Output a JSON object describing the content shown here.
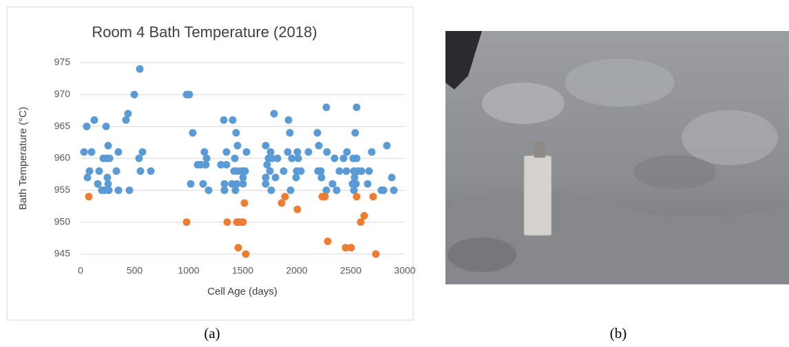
{
  "chart_data": {
    "type": "scatter",
    "title": "Room 4 Bath Temperature (2018)",
    "x_label": "Cell Age (days)",
    "y_label": "Bath Temperature (°C)",
    "xlim": [
      0,
      3000
    ],
    "xticks": [
      0,
      500,
      1000,
      1500,
      2000,
      2500,
      3000
    ],
    "ylim": [
      945,
      975
    ],
    "yticks": [
      945,
      950,
      955,
      960,
      965,
      970,
      975
    ],
    "grid": true,
    "series": [
      {
        "color": "#5b9bd5",
        "x": [
          32,
          57,
          64,
          83,
          102,
          127,
          159,
          172,
          197,
          210,
          223,
          242,
          236,
          248,
          255,
          255,
          261,
          268,
          331,
          350,
          350,
          420,
          439,
          452,
          497,
          548,
          541,
          554,
          573,
          650,
          981,
          1006,
          1019,
          1038,
          1083,
          1115,
          1134,
          1146,
          1159,
          1166,
          1185,
          1299,
          1325,
          1331,
          1331,
          1350,
          1350,
          1408,
          1401,
          1420,
          1427,
          1433,
          1439,
          1452,
          1446,
          1452,
          1490,
          1503,
          1503,
          1522,
          1535,
          1509,
          1713,
          1713,
          1713,
          1726,
          1739,
          1758,
          1752,
          1764,
          1771,
          1790,
          1803,
          1822,
          1879,
          1917,
          1924,
          1936,
          1943,
          1955,
          1994,
          2000,
          2006,
          2013,
          2038,
          2108,
          2191,
          2197,
          2204,
          2223,
          2229,
          2274,
          2274,
          2280,
          2331,
          2350,
          2369,
          2395,
          2433,
          2459,
          2465,
          2516,
          2522,
          2529,
          2535,
          2541,
          2529,
          2548,
          2554,
          2554,
          2567,
          2599,
          2656,
          2669,
          2694,
          2783,
          2803,
          2834,
          2879,
          2898
        ],
        "values": [
          961,
          965,
          957,
          958,
          961,
          966,
          956,
          958,
          955,
          960,
          955,
          960,
          965,
          957,
          962,
          956,
          955,
          960,
          958,
          961,
          955,
          966,
          967,
          955,
          970,
          974,
          960,
          958,
          961,
          958,
          970,
          970,
          956,
          964,
          959,
          959,
          956,
          961,
          959,
          960,
          955,
          959,
          966,
          956,
          955,
          961,
          959,
          966,
          956,
          958,
          960,
          955,
          964,
          962,
          956,
          958,
          958,
          957,
          956,
          958,
          961,
          958,
          962,
          957,
          956,
          959,
          960,
          961,
          958,
          955,
          960,
          967,
          957,
          960,
          958,
          961,
          966,
          964,
          955,
          960,
          957,
          958,
          961,
          960,
          958,
          961,
          964,
          958,
          962,
          958,
          957,
          955,
          968,
          961,
          956,
          960,
          955,
          958,
          960,
          958,
          961,
          956,
          960,
          955,
          957,
          964,
          958,
          956,
          968,
          960,
          958,
          958,
          956,
          958,
          961,
          955,
          955,
          962,
          957,
          955
        ]
      },
      {
        "color": "#ed7d31",
        "x": [
          76,
          981,
          1357,
          1446,
          1459,
          1471,
          1503,
          1516,
          1529,
          1860,
          1892,
          2006,
          2236,
          2261,
          2287,
          2452,
          2503,
          2554,
          2592,
          2624,
          2707,
          2732
        ],
        "values": [
          954,
          950,
          950,
          950,
          946,
          950,
          950,
          953,
          945,
          953,
          954,
          952,
          954,
          954,
          947,
          946,
          946,
          954,
          950,
          951,
          954,
          945
        ]
      }
    ]
  },
  "captions": [
    "(a)",
    "(b)"
  ]
}
